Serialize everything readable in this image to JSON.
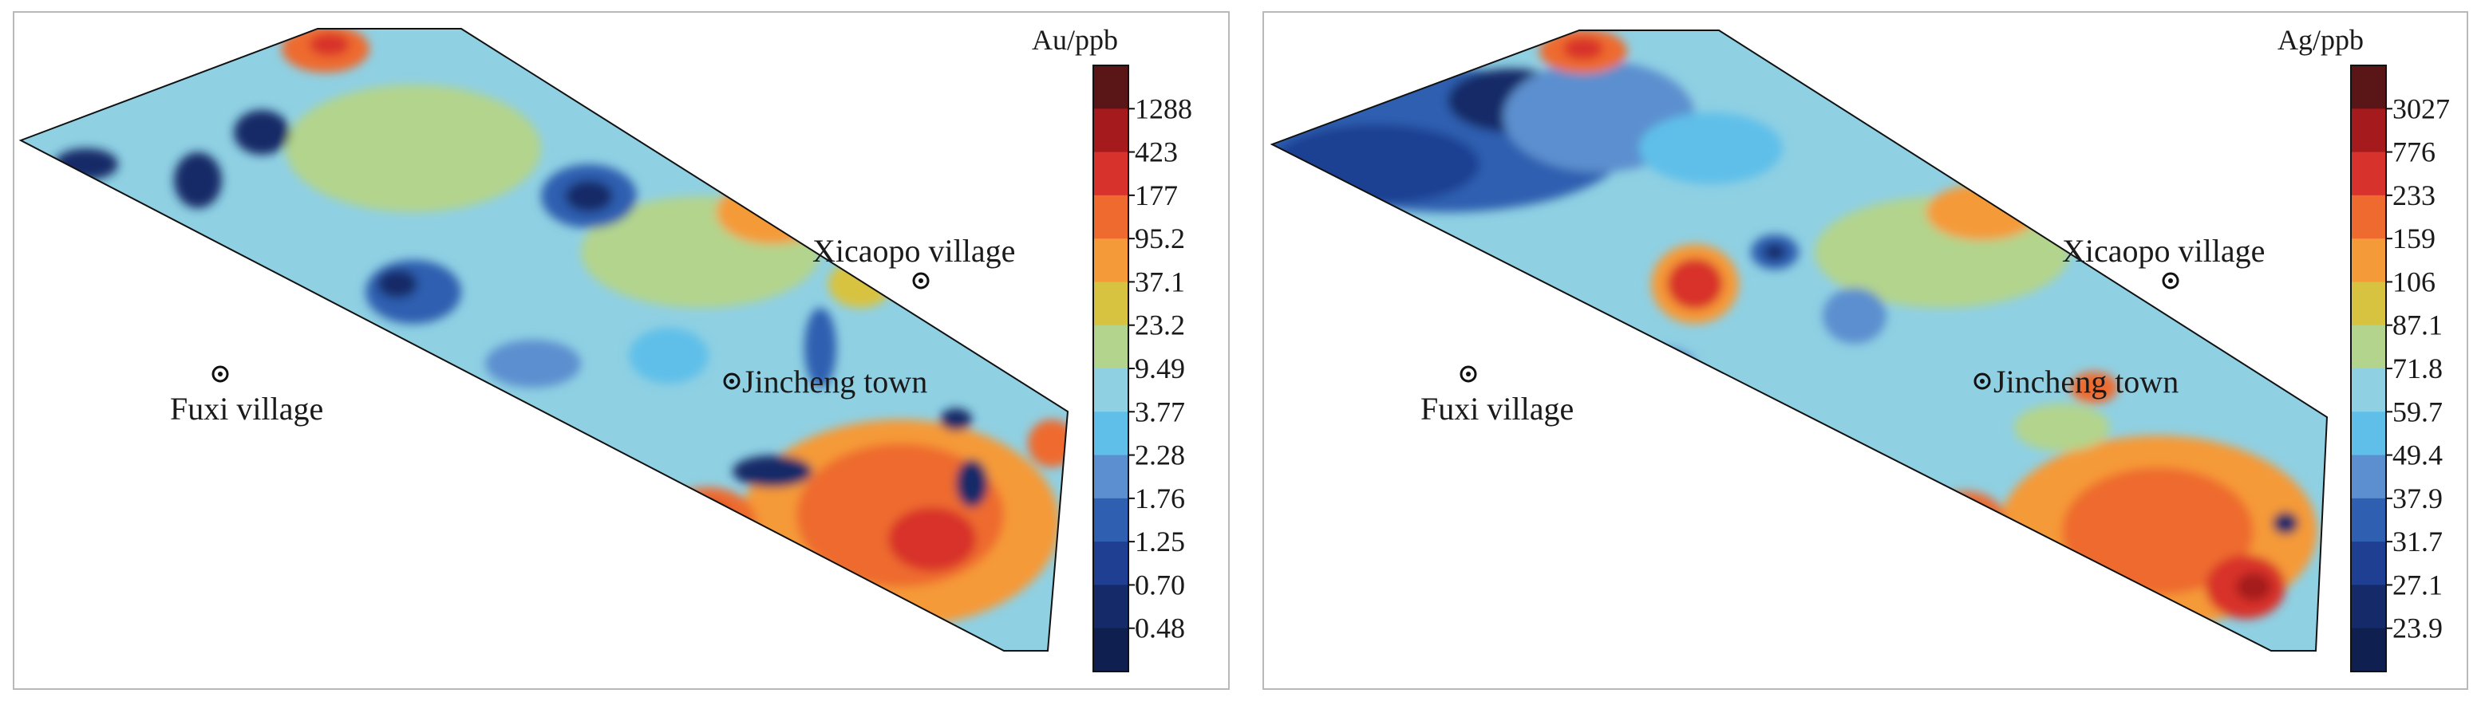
{
  "maps": [
    {
      "id": "au",
      "legend_title": "Au/ppb",
      "legend_values": [
        "1288",
        "423",
        "177",
        "95.2",
        "37.1",
        "23.2",
        "9.49",
        "3.77",
        "2.28",
        "1.76",
        "1.25",
        "0.70",
        "0.48"
      ],
      "legend_colors": [
        "#5a1616",
        "#a51a1c",
        "#d8322c",
        "#ee6a2e",
        "#f59a38",
        "#d8c340",
        "#b3d48c",
        "#8fd0e3",
        "#5fbfe9",
        "#5b8fcf",
        "#2f5fb0",
        "#1e3f92",
        "#152a68",
        "#0f1f4f"
      ],
      "places": {
        "xicaopo": "Xicaopo village",
        "fuxi": "Fuxi village",
        "jincheng": "Jincheng town"
      }
    },
    {
      "id": "ag",
      "legend_title": "Ag/ppb",
      "legend_values": [
        "3027",
        "776",
        "233",
        "159",
        "106",
        "87.1",
        "71.8",
        "59.7",
        "49.4",
        "37.9",
        "31.7",
        "27.1",
        "23.9"
      ],
      "legend_colors": [
        "#5a1616",
        "#a51a1c",
        "#d8322c",
        "#ee6a2e",
        "#f59a38",
        "#d8c340",
        "#b3d48c",
        "#8fd0e3",
        "#5fbfe9",
        "#5b8fcf",
        "#2f5fb0",
        "#1e3f92",
        "#152a68",
        "#0f1f4f"
      ],
      "places": {
        "xicaopo": "Xicaopo village",
        "fuxi": "Fuxi village",
        "jincheng": "Jincheng town"
      }
    }
  ]
}
